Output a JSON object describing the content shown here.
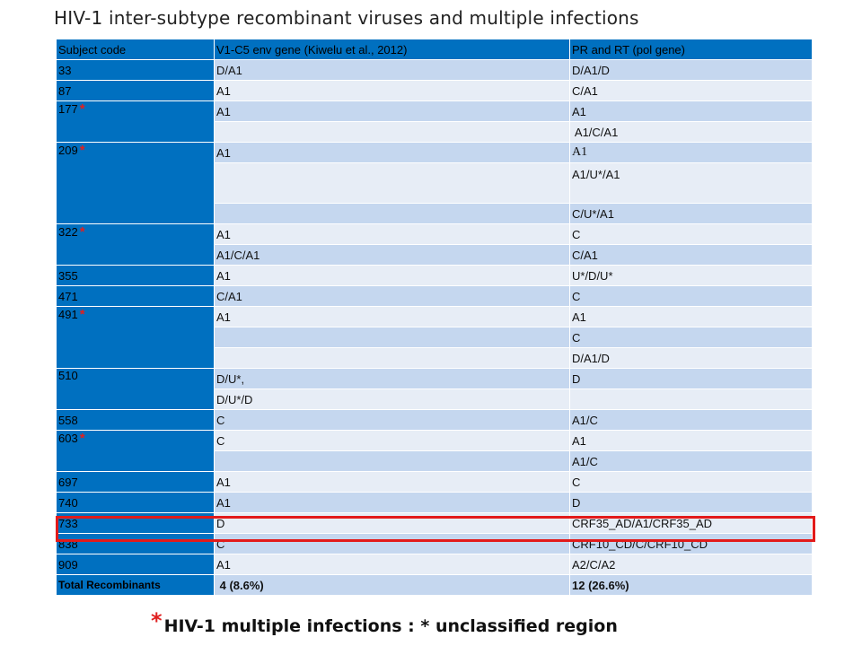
{
  "title": "HIV-1 inter-subtype recombinant viruses and multiple infections",
  "table": {
    "headers": [
      "Subject code",
      "V1-C5 env gene (Kiwelu et al., 2012)",
      "PR and RT (pol gene)"
    ],
    "subject_star_symbol": "*",
    "subjects": {
      "s33": "33",
      "s87": "87",
      "s177": "177",
      "s209": "209",
      "s322": "322",
      "s355": "355",
      "s471": "471",
      "s491": "491",
      "s510": "510",
      "s558": "558",
      "s603": "603",
      "s697": "697",
      "s740": "740",
      "s733": "733",
      "s838": "838",
      "s909": "909",
      "total": "Total Recombinants"
    },
    "env": {
      "r33": "D/A1",
      "r87": "A1",
      "r177": "A1",
      "r209": "A1",
      "r322a": "A1",
      "r322b": "A1/C/A1",
      "r355": "A1",
      "r471": "C/A1",
      "r491": "A1",
      "r510a": "D/U*,",
      "r510b": "D/U*/D",
      "r558": "C",
      "r603": "C",
      "r697": "A1",
      "r740": "A1",
      "r733": "D",
      "r838": "C",
      "r909": "A1",
      "total": " 4 (8.6%)"
    },
    "pol": {
      "r33": "D/A1/D",
      "r87": "C/A1",
      "r177a": "A1",
      "r177b": " A1/C/A1",
      "r209a": "A1",
      "r209b": "A1/U*/A1",
      "r209c": "C/U*/A1",
      "r322a": "C",
      "r322b": "C/A1",
      "r355": "U*/D/U*",
      "r471": "C",
      "r491a": "A1",
      "r491b": "C",
      "r491c": "D/A1/D",
      "r510": "D",
      "r558": "A1/C",
      "r603a": "A1",
      "r603b": "A1/C",
      "r697": "C",
      "r740": "D",
      "r733": "CRF35_AD/A1/CRF35_AD",
      "r838": "CRF10_CD/C/CRF10_CD",
      "r909": "A2/C/A2",
      "total": "12 (26.6%)"
    }
  },
  "footnote": {
    "star": "*",
    "text": "HIV-1 multiple infections : * unclassified region"
  },
  "colors": {
    "subject_column": "#0070c0",
    "row_dark": "#c5d7ef",
    "row_light": "#e7edf6",
    "star": "#e02020",
    "highlight_box": "#e21a1a"
  }
}
